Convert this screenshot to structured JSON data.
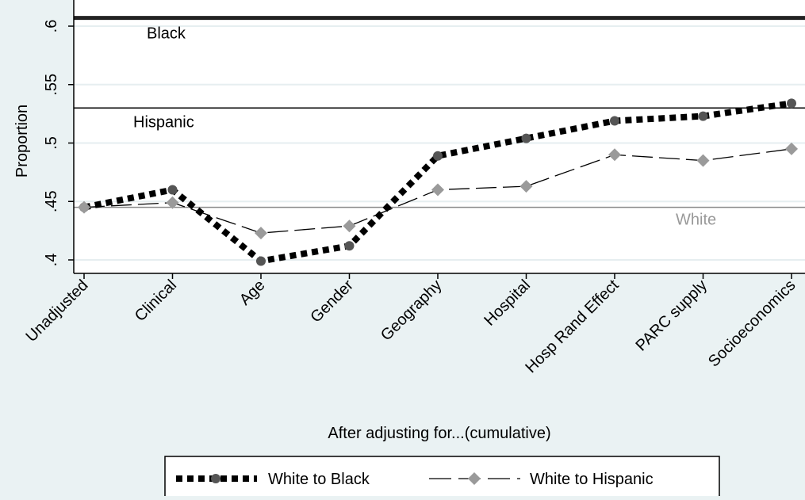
{
  "chart_data": {
    "type": "line",
    "title": "",
    "xlabel": "After adjusting for...(cumulative)",
    "ylabel": "Proportion",
    "ylim": [
      0.39,
      0.62
    ],
    "yticks": [
      0.4,
      0.45,
      0.5,
      0.55,
      0.6
    ],
    "ytick_labels": [
      ".4",
      ".45",
      ".5",
      ".55",
      ".6"
    ],
    "grid": true,
    "categories": [
      "Unadjusted",
      "Clinical",
      "Age",
      "Gender",
      "Geography",
      "Hospital",
      "Hosp Rand Effect",
      "PARC supply",
      "Socioeconomics"
    ],
    "series": [
      {
        "name": "White to Black",
        "style": "dotted-thick",
        "marker": "circle",
        "color": "#000000",
        "marker_color": "#555555",
        "values": [
          0.445,
          0.46,
          0.399,
          0.412,
          0.489,
          0.504,
          0.519,
          0.523,
          0.534
        ]
      },
      {
        "name": "White to Hispanic",
        "style": "long-dash",
        "marker": "diamond",
        "color": "#000000",
        "marker_color": "#9a9a9a",
        "values": [
          0.445,
          0.449,
          0.423,
          0.429,
          0.46,
          0.463,
          0.49,
          0.485,
          0.495
        ]
      }
    ],
    "reference_lines": [
      {
        "label": "Black",
        "value": 0.607,
        "color": "#222222"
      },
      {
        "label": "Hispanic",
        "value": 0.53,
        "color": "#000000"
      },
      {
        "label": "White",
        "value": 0.445,
        "color": "#888888"
      }
    ],
    "legend": {
      "position": "bottom",
      "entries": [
        "White to Black",
        "White to Hispanic"
      ]
    }
  }
}
